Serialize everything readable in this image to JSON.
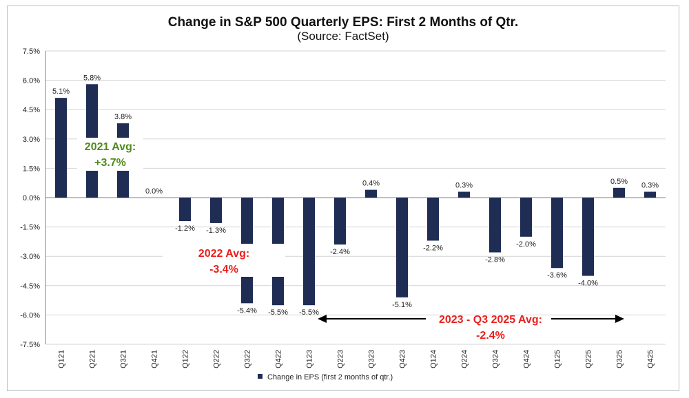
{
  "chart_data": {
    "type": "bar",
    "title": "Change in S&P 500 Quarterly EPS: First 2 Months of Qtr.",
    "subtitle": "(Source: FactSet)",
    "categories": [
      "Q121",
      "Q221",
      "Q321",
      "Q421",
      "Q122",
      "Q222",
      "Q322",
      "Q422",
      "Q123",
      "Q223",
      "Q323",
      "Q423",
      "Q124",
      "Q224",
      "Q324",
      "Q424",
      "Q125",
      "Q225",
      "Q325",
      "Q425"
    ],
    "series": [
      {
        "name": "Change in EPS (first 2 months of qtr.)",
        "values": [
          5.1,
          5.8,
          3.8,
          0.0,
          -1.2,
          -1.3,
          -5.4,
          -5.5,
          -5.5,
          -2.4,
          0.4,
          -5.1,
          -2.2,
          0.3,
          -2.8,
          -2.0,
          -3.6,
          -4.0,
          0.5,
          0.3
        ],
        "labels": [
          "5.1%",
          "5.8%",
          "3.8%",
          "0.0%",
          "-1.2%",
          "-1.3%",
          "-5.4%",
          "-5.5%",
          "-5.5%",
          "-2.4%",
          "0.4%",
          "-5.1%",
          "-2.2%",
          "0.3%",
          "-2.8%",
          "-2.0%",
          "-3.6%",
          "-4.0%",
          "0.5%",
          "0.3%"
        ],
        "color": "#1f2d55"
      }
    ],
    "yticks": [
      "7.5%",
      "6.0%",
      "4.5%",
      "3.0%",
      "1.5%",
      "0.0%",
      "-1.5%",
      "-3.0%",
      "-4.5%",
      "-6.0%",
      "-7.5%"
    ],
    "ylim": [
      -7.5,
      7.5
    ],
    "ystep": 1.5,
    "xlabel": "",
    "ylabel": "",
    "grid": true,
    "legend_position": "bottom-center",
    "annotations": {
      "avg_2021": {
        "line1": "2021 Avg:",
        "line2": "+3.7%",
        "color": "#4f8a1e"
      },
      "avg_2022": {
        "line1": "2022 Avg:",
        "line2": "-3.4%",
        "color": "#e8201c"
      },
      "avg_2023_2025": {
        "line1": "2023 - Q3 2025 Avg:",
        "line2": "-2.4%",
        "color": "#e8201c"
      }
    },
    "colors": {
      "bar": "#1f2d55",
      "grid": "#d4d4d4",
      "axis": "#808080",
      "arrow": "#000000"
    }
  }
}
